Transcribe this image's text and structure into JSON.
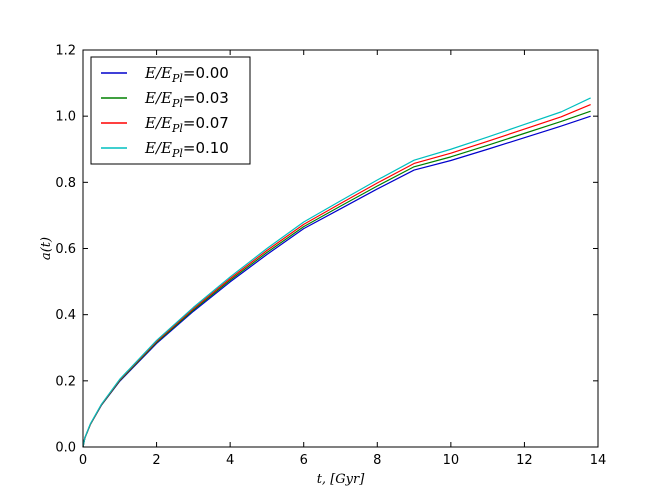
{
  "chart_data": {
    "type": "line",
    "xlabel": "t, [Gyr]",
    "ylabel": "a(t)",
    "xlim": [
      0,
      14
    ],
    "ylim": [
      0.0,
      1.2
    ],
    "xticks": [
      "0",
      "2",
      "4",
      "6",
      "8",
      "10",
      "12",
      "14"
    ],
    "yticks": [
      "0.0",
      "0.2",
      "0.4",
      "0.6",
      "0.8",
      "1.0",
      "1.2"
    ],
    "grid": false,
    "legend_position": "top-left",
    "series": [
      {
        "name": "E/E_Pl = 0.00",
        "color": "#0000cc",
        "x": [
          0,
          0.05,
          0.2,
          0.5,
          1,
          2,
          3,
          4,
          5,
          6,
          7,
          8,
          9,
          10,
          11,
          12,
          13,
          13.8
        ],
        "y": [
          0,
          0.027,
          0.068,
          0.126,
          0.199,
          0.313,
          0.41,
          0.499,
          0.582,
          0.66,
          0.72,
          0.78,
          0.837,
          0.866,
          0.9,
          0.935,
          0.97,
          1.0
        ]
      },
      {
        "name": "E/E_Pl = 0.03",
        "color": "#008000",
        "x": [
          0,
          0.05,
          0.2,
          0.5,
          1,
          2,
          3,
          4,
          5,
          6,
          7,
          8,
          9,
          10,
          11,
          12,
          13,
          13.8
        ],
        "y": [
          0,
          0.027,
          0.068,
          0.127,
          0.201,
          0.316,
          0.414,
          0.504,
          0.588,
          0.666,
          0.728,
          0.789,
          0.847,
          0.877,
          0.912,
          0.948,
          0.984,
          1.015
        ]
      },
      {
        "name": "E/E_Pl = 0.07",
        "color": "#ff0000",
        "x": [
          0,
          0.05,
          0.2,
          0.5,
          1,
          2,
          3,
          4,
          5,
          6,
          7,
          8,
          9,
          10,
          11,
          12,
          13,
          13.8
        ],
        "y": [
          0,
          0.028,
          0.069,
          0.128,
          0.203,
          0.319,
          0.418,
          0.509,
          0.594,
          0.673,
          0.736,
          0.798,
          0.857,
          0.888,
          0.924,
          0.961,
          0.998,
          1.035
        ]
      },
      {
        "name": "E/E_Pl = 0.10",
        "color": "#00bfbf",
        "x": [
          0,
          0.05,
          0.2,
          0.5,
          1,
          2,
          3,
          4,
          5,
          6,
          7,
          8,
          9,
          10,
          11,
          12,
          13,
          13.8
        ],
        "y": [
          0,
          0.028,
          0.07,
          0.129,
          0.205,
          0.322,
          0.422,
          0.514,
          0.6,
          0.68,
          0.744,
          0.807,
          0.867,
          0.9,
          0.937,
          0.975,
          1.013,
          1.055
        ]
      }
    ],
    "legend": {
      "prefix": "E/E",
      "subscript": "Pl",
      "values": [
        "0.00",
        "0.03",
        "0.07",
        "0.10"
      ]
    }
  }
}
